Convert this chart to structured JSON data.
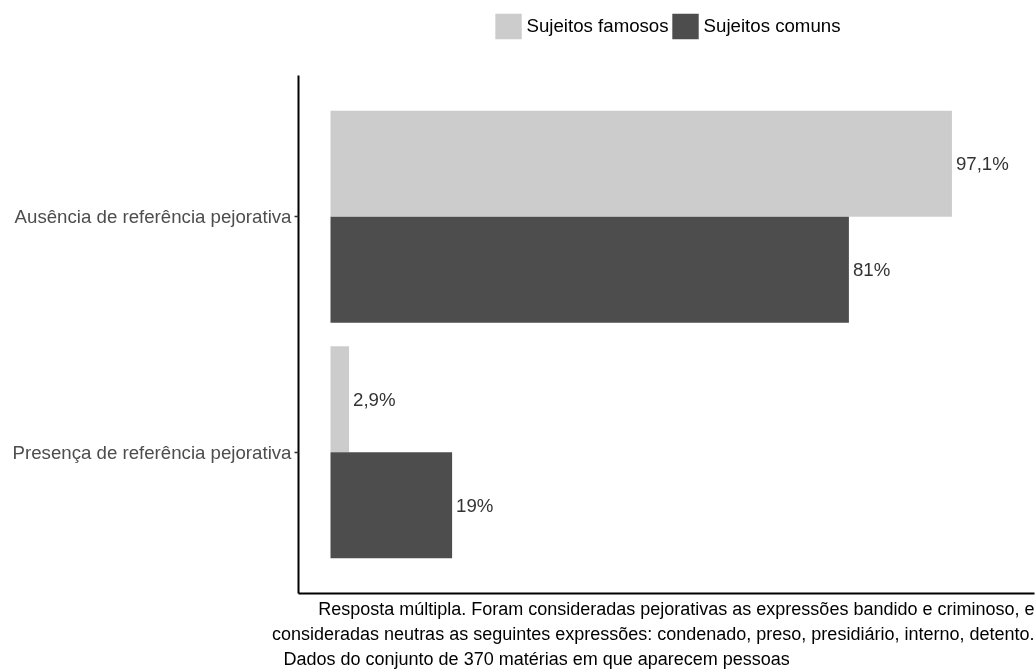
{
  "chart_data": {
    "type": "bar",
    "orientation": "horizontal",
    "categories": [
      "Ausência de referência pejorativa",
      "Presença de referência pejorativa"
    ],
    "series": [
      {
        "name": "Sujeitos famosos",
        "color": "#cccccc",
        "values": [
          97.1,
          2.9
        ],
        "value_labels": [
          "97,1%",
          "2,9%"
        ]
      },
      {
        "name": "Sujeitos comuns",
        "color": "#4d4d4d",
        "values": [
          81,
          19
        ],
        "value_labels": [
          "81%",
          "19%"
        ]
      }
    ],
    "xlim": [
      -5,
      110
    ],
    "legend": "top",
    "grid": false,
    "tick_labels": "y",
    "annotations": [
      "Resposta múltipla. Foram consideradas pejorativas as expressões bandido e criminoso, e consideradas neutras as seguintes expressões: condenado, preso, presidiário, interno, detento.",
      "Dados do conjunto de 370 matérias em que aparecem pessoas"
    ]
  }
}
